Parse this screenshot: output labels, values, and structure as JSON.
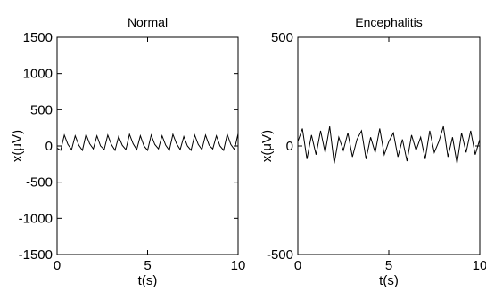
{
  "chart_data": [
    {
      "type": "line",
      "title": "Normal",
      "xlabel": "t(s)",
      "ylabel": "x(μV)",
      "xlim": [
        0,
        10
      ],
      "ylim": [
        -1500,
        1500
      ],
      "xticks": [
        0,
        5,
        10
      ],
      "yticks": [
        -1500,
        -1000,
        -500,
        0,
        500,
        1000,
        1500
      ],
      "grid": false,
      "series": [
        {
          "x": [
            0,
            0.2,
            0.4,
            0.6,
            0.8,
            1.0,
            1.2,
            1.4,
            1.6,
            1.8,
            2.0,
            2.2,
            2.4,
            2.6,
            2.8,
            3.0,
            3.2,
            3.4,
            3.6,
            3.8,
            4.0,
            4.2,
            4.4,
            4.6,
            4.8,
            5.0,
            5.2,
            5.4,
            5.6,
            5.8,
            6.0,
            6.2,
            6.4,
            6.6,
            6.8,
            7.0,
            7.2,
            7.4,
            7.6,
            7.8,
            8.0,
            8.2,
            8.4,
            8.6,
            8.8,
            9.0,
            9.2,
            9.4,
            9.6,
            9.8,
            10.0
          ],
          "y": [
            -30,
            -60,
            150,
            20,
            -50,
            140,
            10,
            -60,
            160,
            30,
            -40,
            140,
            0,
            -50,
            150,
            20,
            -60,
            130,
            10,
            -50,
            160,
            30,
            -50,
            140,
            0,
            -60,
            150,
            20,
            -40,
            140,
            10,
            -60,
            160,
            30,
            -50,
            130,
            0,
            -60,
            150,
            20,
            -50,
            150,
            10,
            -40,
            140,
            0,
            -60,
            160,
            20,
            -50,
            170
          ]
        }
      ]
    },
    {
      "type": "line",
      "title": "Encephalitis",
      "xlabel": "t(s)",
      "ylabel": "x(μV)",
      "xlim": [
        0,
        10
      ],
      "ylim": [
        -500,
        500
      ],
      "xticks": [
        0,
        5,
        10
      ],
      "yticks": [
        -500,
        0,
        500
      ],
      "grid": false,
      "series": [
        {
          "x": [
            0,
            0.25,
            0.5,
            0.75,
            1.0,
            1.25,
            1.5,
            1.75,
            2.0,
            2.25,
            2.5,
            2.75,
            3.0,
            3.25,
            3.5,
            3.75,
            4.0,
            4.25,
            4.5,
            4.75,
            5.0,
            5.25,
            5.5,
            5.75,
            6.0,
            6.25,
            6.5,
            6.75,
            7.0,
            7.25,
            7.5,
            7.75,
            8.0,
            8.25,
            8.5,
            8.75,
            9.0,
            9.25,
            9.5,
            9.75,
            10.0
          ],
          "y": [
            20,
            80,
            -60,
            50,
            -40,
            70,
            -30,
            90,
            -80,
            40,
            -20,
            60,
            -50,
            30,
            70,
            -60,
            40,
            -30,
            80,
            -40,
            20,
            60,
            -50,
            30,
            -70,
            50,
            -20,
            40,
            -60,
            70,
            -30,
            20,
            90,
            -50,
            40,
            -80,
            60,
            -30,
            70,
            -40,
            30
          ]
        }
      ]
    }
  ]
}
